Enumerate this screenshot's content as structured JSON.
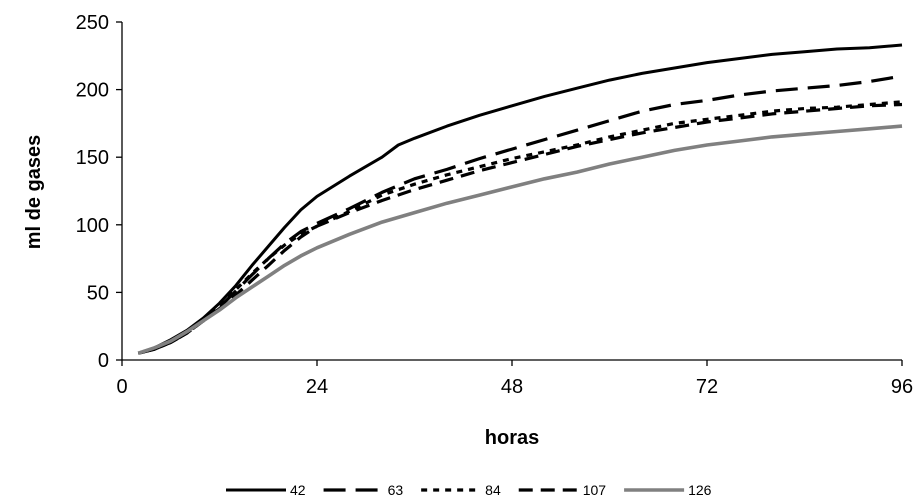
{
  "chart_data": {
    "type": "line",
    "title": "",
    "xlabel": "horas",
    "ylabel": "ml de gases",
    "xlim": [
      0,
      96
    ],
    "ylim": [
      0,
      250
    ],
    "x_ticks": [
      0,
      24,
      48,
      72,
      96
    ],
    "y_ticks": [
      0,
      50,
      100,
      150,
      200,
      250
    ],
    "grid": false,
    "legend_position": "bottom",
    "series": [
      {
        "name": "42",
        "style": "solid",
        "color": "#000000",
        "x": [
          2,
          4,
          6,
          8,
          10,
          12,
          14,
          16,
          18,
          20,
          22,
          24,
          28,
          32,
          34,
          36,
          40,
          44,
          48,
          52,
          56,
          60,
          64,
          68,
          72,
          76,
          80,
          84,
          88,
          92,
          96
        ],
        "y": [
          5,
          9,
          15,
          22,
          31,
          42,
          55,
          70,
          84,
          98,
          111,
          121,
          136,
          150,
          159,
          164,
          173,
          181,
          188,
          195,
          201,
          207,
          212,
          216,
          220,
          223,
          226,
          228,
          230,
          231,
          233
        ]
      },
      {
        "name": "63",
        "style": "long-dash",
        "color": "#000000",
        "x": [
          2,
          4,
          6,
          8,
          10,
          12,
          14,
          16,
          18,
          20,
          22,
          24,
          28,
          32,
          36,
          40,
          44,
          48,
          52,
          56,
          60,
          64,
          68,
          72,
          76,
          80,
          84,
          88,
          92,
          96
        ],
        "y": [
          5,
          8,
          13,
          20,
          29,
          39,
          51,
          63,
          75,
          86,
          95,
          101,
          112,
          124,
          134,
          141,
          149,
          156,
          163,
          170,
          177,
          184,
          189,
          192,
          196,
          199,
          201,
          203,
          206,
          210
        ]
      },
      {
        "name": "84",
        "style": "short-dash",
        "color": "#000000",
        "x": [
          2,
          4,
          6,
          8,
          10,
          12,
          14,
          16,
          18,
          20,
          22,
          24,
          28,
          32,
          36,
          40,
          44,
          48,
          52,
          56,
          60,
          64,
          68,
          72,
          76,
          80,
          84,
          88,
          92,
          96
        ],
        "y": [
          5,
          8,
          13,
          20,
          29,
          40,
          52,
          64,
          75,
          85,
          93,
          99,
          110,
          122,
          130,
          137,
          143,
          149,
          154,
          159,
          165,
          170,
          175,
          178,
          181,
          184,
          186,
          187,
          189,
          191
        ]
      },
      {
        "name": "107",
        "style": "dash",
        "color": "#000000",
        "x": [
          2,
          4,
          6,
          8,
          10,
          12,
          14,
          16,
          18,
          20,
          22,
          24,
          28,
          32,
          36,
          40,
          44,
          48,
          52,
          56,
          60,
          64,
          68,
          72,
          76,
          80,
          84,
          88,
          92,
          96
        ],
        "y": [
          5,
          8,
          13,
          20,
          29,
          38,
          48,
          59,
          70,
          81,
          91,
          99,
          109,
          118,
          126,
          133,
          140,
          146,
          152,
          158,
          163,
          168,
          172,
          176,
          179,
          182,
          184,
          186,
          188,
          189
        ]
      },
      {
        "name": "126",
        "style": "solid-gray",
        "color": "#808080",
        "x": [
          2,
          4,
          6,
          8,
          10,
          12,
          14,
          16,
          18,
          20,
          22,
          24,
          28,
          32,
          36,
          40,
          44,
          48,
          52,
          56,
          60,
          64,
          68,
          72,
          76,
          80,
          84,
          88,
          92,
          96
        ],
        "y": [
          5,
          9,
          14,
          21,
          29,
          37,
          46,
          54,
          62,
          70,
          77,
          83,
          93,
          102,
          109,
          116,
          122,
          128,
          134,
          139,
          145,
          150,
          155,
          159,
          162,
          165,
          167,
          169,
          171,
          173
        ]
      }
    ]
  }
}
